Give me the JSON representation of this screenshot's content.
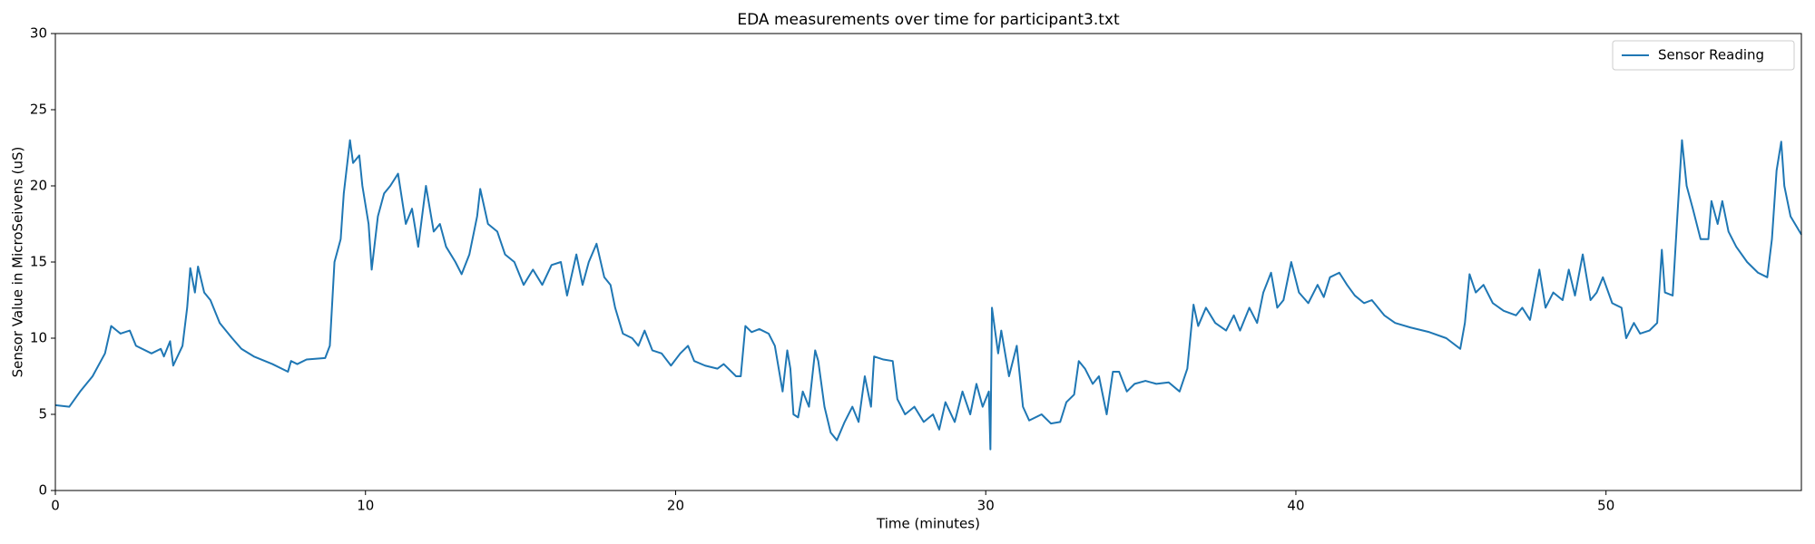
{
  "chart_data": {
    "type": "line",
    "title": "EDA measurements over time for participant3.txt",
    "x_label": "Time (minutes)",
    "y_label": "Sensor Value in MicroSeivens (uS)",
    "x": [
      0,
      0.45,
      0.8,
      1.2,
      1.6,
      1.8,
      2.1,
      2.4,
      2.6,
      3.1,
      3.4,
      3.5,
      3.7,
      3.8,
      4.1,
      4.25,
      4.35,
      4.5,
      4.6,
      4.8,
      5.0,
      5.3,
      5.7,
      6.0,
      6.4,
      7.0,
      7.5,
      7.6,
      7.8,
      8.1,
      8.7,
      8.85,
      9.0,
      9.2,
      9.3,
      9.5,
      9.6,
      9.8,
      9.9,
      10.1,
      10.2,
      10.4,
      10.6,
      10.8,
      11.05,
      11.3,
      11.5,
      11.7,
      11.95,
      12.2,
      12.4,
      12.6,
      12.9,
      13.1,
      13.35,
      13.6,
      13.7,
      13.95,
      14.25,
      14.5,
      14.8,
      15.1,
      15.4,
      15.7,
      16.0,
      16.3,
      16.5,
      16.8,
      17.0,
      17.2,
      17.45,
      17.7,
      17.9,
      18.05,
      18.3,
      18.6,
      18.8,
      19.0,
      19.25,
      19.55,
      19.85,
      20.15,
      20.4,
      20.6,
      20.95,
      21.35,
      21.55,
      21.95,
      22.1,
      22.25,
      22.45,
      22.7,
      23.0,
      23.2,
      23.45,
      23.6,
      23.7,
      23.8,
      23.95,
      24.1,
      24.3,
      24.5,
      24.6,
      24.8,
      25.0,
      25.2,
      25.45,
      25.7,
      25.9,
      26.1,
      26.3,
      26.4,
      26.7,
      27.0,
      27.15,
      27.4,
      27.7,
      28.0,
      28.3,
      28.5,
      28.7,
      29.0,
      29.25,
      29.5,
      29.7,
      29.9,
      30.1,
      30.15,
      30.2,
      30.4,
      30.5,
      30.75,
      31.0,
      31.2,
      31.4,
      31.8,
      32.1,
      32.4,
      32.6,
      32.85,
      33.0,
      33.2,
      33.45,
      33.65,
      33.9,
      34.1,
      34.3,
      34.55,
      34.8,
      35.15,
      35.5,
      35.9,
      36.25,
      36.5,
      36.7,
      36.85,
      37.1,
      37.4,
      37.75,
      38.0,
      38.2,
      38.5,
      38.75,
      38.95,
      39.2,
      39.4,
      39.6,
      39.85,
      40.1,
      40.4,
      40.7,
      40.9,
      41.1,
      41.4,
      41.65,
      41.9,
      42.2,
      42.45,
      42.85,
      43.2,
      43.7,
      44.3,
      44.85,
      45.3,
      45.45,
      45.6,
      45.8,
      46.05,
      46.35,
      46.7,
      47.1,
      47.3,
      47.55,
      47.85,
      48.05,
      48.3,
      48.6,
      48.8,
      49.0,
      49.25,
      49.5,
      49.7,
      49.9,
      50.2,
      50.5,
      50.65,
      50.9,
      51.1,
      51.4,
      51.65,
      51.8,
      51.9,
      52.15,
      52.3,
      52.45,
      52.6,
      52.8,
      53.05,
      53.3,
      53.4,
      53.6,
      53.75,
      53.95,
      54.2,
      54.55,
      54.9,
      55.2,
      55.35,
      55.5,
      55.65,
      55.75,
      55.95,
      56.3
    ],
    "series": [
      {
        "name": "Sensor Reading",
        "color": "#1f77b4",
        "values": [
          5.6,
          5.5,
          6.5,
          7.5,
          9.0,
          10.8,
          10.3,
          10.5,
          9.5,
          9.0,
          9.3,
          8.8,
          9.8,
          8.2,
          9.5,
          12.0,
          14.6,
          13.0,
          14.7,
          13.0,
          12.5,
          11.0,
          10.0,
          9.3,
          8.8,
          8.3,
          7.8,
          8.5,
          8.3,
          8.6,
          8.7,
          9.5,
          15.0,
          16.5,
          19.5,
          23.0,
          21.5,
          22.0,
          20.0,
          17.5,
          14.5,
          18.0,
          19.5,
          20.0,
          20.8,
          17.5,
          18.5,
          16.0,
          20.0,
          17.0,
          17.5,
          16.0,
          15.0,
          14.2,
          15.5,
          18.0,
          19.8,
          17.5,
          17.0,
          15.5,
          15.0,
          13.5,
          14.5,
          13.5,
          14.8,
          15.0,
          12.8,
          15.5,
          13.5,
          15.0,
          16.2,
          14.0,
          13.5,
          12.0,
          10.3,
          10.0,
          9.5,
          10.5,
          9.2,
          9.0,
          8.2,
          9.0,
          9.5,
          8.5,
          8.2,
          8.0,
          8.3,
          7.5,
          7.5,
          10.8,
          10.4,
          10.6,
          10.3,
          9.5,
          6.5,
          9.2,
          8.0,
          5.0,
          4.8,
          6.5,
          5.5,
          9.2,
          8.5,
          5.5,
          3.8,
          3.3,
          4.5,
          5.5,
          4.5,
          7.5,
          5.5,
          8.8,
          8.6,
          8.5,
          6.0,
          5.0,
          5.5,
          4.5,
          5.0,
          4.0,
          5.8,
          4.5,
          6.5,
          5.0,
          7.0,
          5.5,
          6.5,
          2.7,
          12.0,
          9.0,
          10.5,
          7.5,
          9.5,
          5.5,
          4.6,
          5.0,
          4.4,
          4.5,
          5.8,
          6.3,
          8.5,
          8.0,
          7.0,
          7.5,
          5.0,
          7.8,
          7.8,
          6.5,
          7.0,
          7.2,
          7.0,
          7.1,
          6.5,
          8.0,
          12.2,
          10.8,
          12.0,
          11.0,
          10.5,
          11.5,
          10.5,
          12.0,
          11.0,
          13.0,
          14.3,
          12.0,
          12.5,
          15.0,
          13.0,
          12.3,
          13.5,
          12.7,
          14.0,
          14.3,
          13.5,
          12.8,
          12.3,
          12.5,
          11.5,
          11.0,
          10.7,
          10.4,
          10.0,
          9.3,
          11.0,
          14.2,
          13.0,
          13.5,
          12.3,
          11.8,
          11.5,
          12.0,
          11.2,
          14.5,
          12.0,
          13.0,
          12.5,
          14.5,
          12.8,
          15.5,
          12.5,
          13.0,
          14.0,
          12.3,
          12.0,
          10.0,
          11.0,
          10.3,
          10.5,
          11.0,
          15.8,
          13.0,
          12.8,
          18.0,
          23.0,
          20.0,
          18.5,
          16.5,
          16.5,
          19.0,
          17.5,
          19.0,
          17.0,
          16.0,
          15.0,
          14.3,
          14.0,
          16.5,
          21.0,
          22.9,
          20.0,
          18.0,
          16.8
        ]
      }
    ],
    "xlim": [
      0,
      56.3
    ],
    "ylim": [
      0,
      30
    ],
    "xticks": [
      0,
      10,
      20,
      30,
      40,
      50
    ],
    "yticks": [
      0,
      5,
      10,
      15,
      20,
      25,
      30
    ],
    "legend": "upper right"
  }
}
